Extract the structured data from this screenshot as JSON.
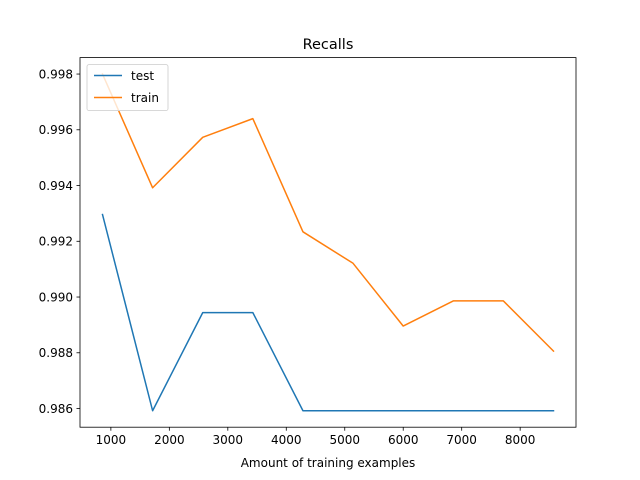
{
  "chart_data": {
    "type": "line",
    "title": "Recalls",
    "xlabel": "Amount of training examples",
    "ylabel": "",
    "x": [
      857,
      1714,
      2571,
      3428,
      4285,
      5142,
      5999,
      6856,
      7713,
      8570
    ],
    "series": [
      {
        "name": "test",
        "color": "#1f77b4",
        "values": [
          0.99296,
          0.98592,
          0.98944,
          0.98944,
          0.98592,
          0.98592,
          0.98592,
          0.98592,
          0.98592,
          0.98592
        ]
      },
      {
        "name": "train",
        "color": "#ff7f0e",
        "values": [
          0.998,
          0.99392,
          0.99573,
          0.9964,
          0.99234,
          0.99121,
          0.98896,
          0.98986,
          0.98986,
          0.98806
        ]
      }
    ],
    "xlim": [
      472,
      8955
    ],
    "ylim": [
      0.98533,
      0.99859
    ],
    "xticks": [
      1000,
      2000,
      3000,
      4000,
      5000,
      6000,
      7000,
      8000
    ],
    "yticks": [
      0.986,
      0.988,
      0.99,
      0.992,
      0.994,
      0.996,
      0.998
    ],
    "xtick_labels": [
      "1000",
      "2000",
      "3000",
      "4000",
      "5000",
      "6000",
      "7000",
      "8000"
    ],
    "ytick_labels": [
      "0.986",
      "0.988",
      "0.990",
      "0.992",
      "0.994",
      "0.996",
      "0.998"
    ],
    "legend": "upper-left",
    "grid": false
  }
}
